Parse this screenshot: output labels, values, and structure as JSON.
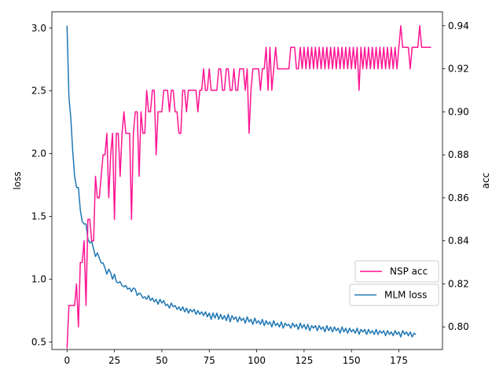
{
  "chart_data": {
    "type": "line",
    "title": "",
    "xlabel": "",
    "ylabel_left": "loss",
    "ylabel_right": "acc",
    "xlim": [
      -8,
      198
    ],
    "ylim_left": [
      0.44,
      3.13
    ],
    "ylim_right": [
      0.7895,
      0.9465
    ],
    "x_ticks": [
      0,
      25,
      50,
      75,
      100,
      125,
      150,
      175
    ],
    "y_left_ticks": [
      0.5,
      1.0,
      1.5,
      2.0,
      2.5,
      3.0
    ],
    "y_right_ticks": [
      0.8,
      0.82,
      0.84,
      0.86,
      0.88,
      0.9,
      0.92,
      0.94
    ],
    "grid": false,
    "legend": [
      {
        "label": "NSP acc",
        "series": "nsp",
        "placement": "center-right"
      },
      {
        "label": "MLM loss",
        "series": "mlm",
        "placement": "center-right"
      }
    ],
    "series": [
      {
        "name": "MLM loss",
        "id": "mlm",
        "axis": "left",
        "color": "#1f77b4",
        "x_start": 0,
        "x_step": 1,
        "values": [
          3.02,
          2.45,
          2.28,
          2.02,
          1.82,
          1.73,
          1.73,
          1.55,
          1.46,
          1.44,
          1.44,
          1.32,
          1.29,
          1.3,
          1.24,
          1.18,
          1.21,
          1.17,
          1.13,
          1.13,
          1.09,
          1.04,
          1.08,
          1.05,
          1.0,
          1.04,
          0.98,
          0.97,
          0.98,
          0.95,
          0.94,
          0.95,
          0.92,
          0.93,
          0.9,
          0.93,
          0.92,
          0.87,
          0.89,
          0.88,
          0.85,
          0.86,
          0.84,
          0.87,
          0.83,
          0.85,
          0.82,
          0.84,
          0.8,
          0.84,
          0.81,
          0.83,
          0.79,
          0.8,
          0.77,
          0.81,
          0.78,
          0.79,
          0.76,
          0.78,
          0.75,
          0.78,
          0.74,
          0.77,
          0.73,
          0.76,
          0.74,
          0.76,
          0.72,
          0.75,
          0.72,
          0.74,
          0.71,
          0.74,
          0.7,
          0.73,
          0.68,
          0.73,
          0.69,
          0.73,
          0.68,
          0.72,
          0.68,
          0.71,
          0.67,
          0.72,
          0.66,
          0.71,
          0.68,
          0.7,
          0.66,
          0.7,
          0.67,
          0.69,
          0.65,
          0.7,
          0.66,
          0.68,
          0.64,
          0.69,
          0.65,
          0.67,
          0.64,
          0.68,
          0.63,
          0.67,
          0.64,
          0.66,
          0.62,
          0.67,
          0.63,
          0.65,
          0.62,
          0.66,
          0.61,
          0.65,
          0.63,
          0.64,
          0.61,
          0.65,
          0.62,
          0.64,
          0.6,
          0.65,
          0.61,
          0.64,
          0.6,
          0.64,
          0.59,
          0.63,
          0.61,
          0.63,
          0.59,
          0.63,
          0.6,
          0.62,
          0.58,
          0.63,
          0.59,
          0.62,
          0.58,
          0.62,
          0.59,
          0.61,
          0.57,
          0.62,
          0.58,
          0.61,
          0.57,
          0.61,
          0.58,
          0.6,
          0.57,
          0.61,
          0.56,
          0.6,
          0.58,
          0.6,
          0.56,
          0.6,
          0.57,
          0.59,
          0.56,
          0.6,
          0.56,
          0.59,
          0.57,
          0.59,
          0.55,
          0.59,
          0.56,
          0.58,
          0.55,
          0.59,
          0.56,
          0.58,
          0.54,
          0.59,
          0.56,
          0.58,
          0.55,
          0.58,
          0.54,
          0.57,
          0.56
        ]
      },
      {
        "name": "NSP acc",
        "id": "nsp",
        "axis": "right",
        "color": "#ff1493",
        "x_start": 0,
        "x_step": 1,
        "values": [
          0.79,
          0.81,
          0.81,
          0.81,
          0.81,
          0.82,
          0.8,
          0.83,
          0.83,
          0.84,
          0.81,
          0.85,
          0.85,
          0.84,
          0.84,
          0.87,
          0.86,
          0.86,
          0.87,
          0.88,
          0.88,
          0.89,
          0.86,
          0.88,
          0.89,
          0.85,
          0.89,
          0.89,
          0.87,
          0.89,
          0.9,
          0.89,
          0.89,
          0.89,
          0.85,
          0.89,
          0.9,
          0.9,
          0.87,
          0.9,
          0.89,
          0.89,
          0.91,
          0.9,
          0.9,
          0.91,
          0.91,
          0.88,
          0.9,
          0.9,
          0.9,
          0.91,
          0.91,
          0.91,
          0.9,
          0.91,
          0.91,
          0.9,
          0.9,
          0.89,
          0.89,
          0.91,
          0.91,
          0.9,
          0.91,
          0.91,
          0.91,
          0.91,
          0.91,
          0.9,
          0.91,
          0.91,
          0.92,
          0.91,
          0.91,
          0.92,
          0.91,
          0.91,
          0.91,
          0.91,
          0.92,
          0.92,
          0.91,
          0.91,
          0.92,
          0.92,
          0.91,
          0.91,
          0.92,
          0.91,
          0.91,
          0.92,
          0.92,
          0.92,
          0.91,
          0.92,
          0.89,
          0.91,
          0.92,
          0.92,
          0.92,
          0.92,
          0.91,
          0.92,
          0.92,
          0.93,
          0.91,
          0.93,
          0.91,
          0.92,
          0.93,
          0.92,
          0.92,
          0.92,
          0.92,
          0.92,
          0.92,
          0.92,
          0.93,
          0.93,
          0.93,
          0.92,
          0.92,
          0.93,
          0.92,
          0.93,
          0.92,
          0.93,
          0.92,
          0.93,
          0.92,
          0.93,
          0.92,
          0.93,
          0.92,
          0.93,
          0.92,
          0.93,
          0.92,
          0.93,
          0.92,
          0.93,
          0.92,
          0.93,
          0.92,
          0.93,
          0.92,
          0.93,
          0.92,
          0.93,
          0.92,
          0.93,
          0.92,
          0.93,
          0.91,
          0.93,
          0.92,
          0.93,
          0.92,
          0.93,
          0.92,
          0.93,
          0.92,
          0.93,
          0.92,
          0.93,
          0.92,
          0.93,
          0.92,
          0.93,
          0.92,
          0.93,
          0.92,
          0.93,
          0.92,
          0.93,
          0.94,
          0.93,
          0.93,
          0.93,
          0.93,
          0.92,
          0.93,
          0.93,
          0.93,
          0.93,
          0.94,
          0.93,
          0.93,
          0.93,
          0.93,
          0.93,
          0.93
        ]
      }
    ]
  }
}
